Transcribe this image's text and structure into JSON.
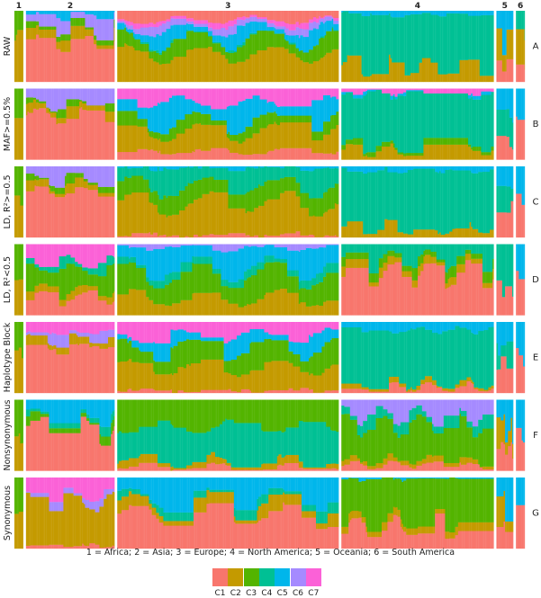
{
  "chart_data": {
    "type": "bar",
    "subtype": "stacked-proportion-admixture",
    "groups": [
      {
        "id": "1",
        "weight": 1.0
      },
      {
        "id": "2",
        "weight": 10.0
      },
      {
        "id": "3",
        "weight": 25.0
      },
      {
        "id": "4",
        "weight": 17.2
      },
      {
        "id": "5",
        "weight": 1.9
      },
      {
        "id": "6",
        "weight": 1.0
      }
    ],
    "clusters": [
      {
        "name": "C1",
        "color": "#F8766D"
      },
      {
        "name": "C2",
        "color": "#C49A00"
      },
      {
        "name": "C3",
        "color": "#53B400"
      },
      {
        "name": "C4",
        "color": "#00C094"
      },
      {
        "name": "C5",
        "color": "#00B6EB"
      },
      {
        "name": "C6",
        "color": "#A58AFF"
      },
      {
        "name": "C7",
        "color": "#FB61D7"
      }
    ],
    "panels": [
      {
        "label": "RAW",
        "letter": "A",
        "groups": [
          [
            [
              1,
              0.6
            ],
            [
              2,
              0.4
            ]
          ],
          [
            [
              0,
              0.58
            ],
            [
              1,
              0.12
            ],
            [
              2,
              0.06
            ],
            [
              5,
              0.18
            ],
            [
              4,
              0.06
            ]
          ],
          [
            [
              1,
              0.41
            ],
            [
              2,
              0.2
            ],
            [
              3,
              0.01
            ],
            [
              4,
              0.13
            ],
            [
              5,
              0.07
            ],
            [
              6,
              0.05
            ],
            [
              0,
              0.13
            ]
          ],
          [
            [
              1,
              0.19
            ],
            [
              3,
              0.76
            ],
            [
              4,
              0.05
            ]
          ],
          [
            [
              0,
              0.3
            ],
            [
              1,
              0.3
            ],
            [
              4,
              0.4
            ]
          ],
          [
            [
              0,
              0.3
            ],
            [
              1,
              0.4
            ],
            [
              3,
              0.3
            ]
          ]
        ]
      },
      {
        "label": "MAF>=0.5%",
        "letter": "B",
        "groups": [
          [
            [
              1,
              0.6
            ],
            [
              2,
              0.4
            ]
          ],
          [
            [
              0,
              0.65
            ],
            [
              1,
              0.1
            ],
            [
              2,
              0.05
            ],
            [
              5,
              0.2
            ]
          ],
          [
            [
              0,
              0.12
            ],
            [
              1,
              0.28
            ],
            [
              2,
              0.13
            ],
            [
              4,
              0.27
            ],
            [
              6,
              0.2
            ]
          ],
          [
            [
              1,
              0.12
            ],
            [
              2,
              0.06
            ],
            [
              3,
              0.74
            ],
            [
              4,
              0.03
            ],
            [
              6,
              0.05
            ]
          ],
          [
            [
              0,
              0.3
            ],
            [
              3,
              0.3
            ],
            [
              4,
              0.4
            ]
          ],
          [
            [
              0,
              0.5
            ],
            [
              4,
              0.5
            ]
          ]
        ]
      },
      {
        "label": "LD, R²>=0.5",
        "letter": "C",
        "groups": [
          [
            [
              1,
              0.6
            ],
            [
              2,
              0.4
            ]
          ],
          [
            [
              0,
              0.65
            ],
            [
              1,
              0.1
            ],
            [
              2,
              0.07
            ],
            [
              5,
              0.18
            ]
          ],
          [
            [
              0,
              0.03
            ],
            [
              1,
              0.45
            ],
            [
              2,
              0.25
            ],
            [
              3,
              0.25
            ],
            [
              4,
              0.02
            ]
          ],
          [
            [
              1,
              0.12
            ],
            [
              3,
              0.82
            ],
            [
              4,
              0.06
            ]
          ],
          [
            [
              0,
              0.3
            ],
            [
              3,
              0.3
            ],
            [
              4,
              0.4
            ]
          ],
          [
            [
              0,
              0.5
            ],
            [
              4,
              0.5
            ]
          ]
        ]
      },
      {
        "label": "LD, R²<0.5",
        "letter": "D",
        "groups": [
          [
            [
              1,
              0.5
            ],
            [
              2,
              0.5
            ]
          ],
          [
            [
              0,
              0.25
            ],
            [
              1,
              0.1
            ],
            [
              2,
              0.3
            ],
            [
              3,
              0.1
            ],
            [
              6,
              0.25
            ]
          ],
          [
            [
              1,
              0.24
            ],
            [
              2,
              0.33
            ],
            [
              3,
              0.1
            ],
            [
              4,
              0.28
            ],
            [
              5,
              0.05
            ]
          ],
          [
            [
              0,
              0.6
            ],
            [
              1,
              0.1
            ],
            [
              2,
              0.1
            ],
            [
              3,
              0.2
            ]
          ],
          [
            [
              0,
              0.5
            ],
            [
              3,
              0.5
            ]
          ],
          [
            [
              0,
              0.5
            ],
            [
              4,
              0.5
            ]
          ]
        ]
      },
      {
        "label": "Haplotype Block",
        "letter": "E",
        "groups": [
          [
            [
              1,
              0.6
            ],
            [
              2,
              0.4
            ]
          ],
          [
            [
              0,
              0.65
            ],
            [
              1,
              0.1
            ],
            [
              5,
              0.1
            ],
            [
              6,
              0.15
            ]
          ],
          [
            [
              0,
              0.04
            ],
            [
              1,
              0.33
            ],
            [
              2,
              0.27
            ],
            [
              4,
              0.16
            ],
            [
              6,
              0.2
            ]
          ],
          [
            [
              0,
              0.07
            ],
            [
              1,
              0.05
            ],
            [
              3,
              0.77
            ],
            [
              4,
              0.11
            ]
          ],
          [
            [
              0,
              0.3
            ],
            [
              3,
              0.3
            ],
            [
              4,
              0.4
            ]
          ],
          [
            [
              0,
              0.5
            ],
            [
              4,
              0.5
            ]
          ]
        ]
      },
      {
        "label": "Nonsynonymous",
        "letter": "F",
        "groups": [
          [
            [
              1,
              0.5
            ],
            [
              2,
              0.5
            ]
          ],
          [
            [
              0,
              0.6
            ],
            [
              2,
              0.1
            ],
            [
              3,
              0.08
            ],
            [
              4,
              0.22
            ]
          ],
          [
            [
              0,
              0.04
            ],
            [
              1,
              0.07
            ],
            [
              3,
              0.5
            ],
            [
              2,
              0.39
            ]
          ],
          [
            [
              0,
              0.08
            ],
            [
              1,
              0.06
            ],
            [
              2,
              0.52
            ],
            [
              3,
              0.14
            ],
            [
              5,
              0.2
            ]
          ],
          [
            [
              0,
              0.3
            ],
            [
              1,
              0.3
            ],
            [
              4,
              0.4
            ]
          ],
          [
            [
              0,
              0.5
            ],
            [
              4,
              0.5
            ]
          ]
        ]
      },
      {
        "label": "Synonymous",
        "letter": "G",
        "groups": [
          [
            [
              1,
              0.5
            ],
            [
              2,
              0.5
            ]
          ],
          [
            [
              0,
              0.05
            ],
            [
              1,
              0.62
            ],
            [
              5,
              0.08
            ],
            [
              6,
              0.25
            ]
          ],
          [
            [
              0,
              0.47
            ],
            [
              1,
              0.14
            ],
            [
              3,
              0.1
            ],
            [
              4,
              0.29
            ]
          ],
          [
            [
              0,
              0.28
            ],
            [
              1,
              0.1
            ],
            [
              2,
              0.6
            ],
            [
              4,
              0.02
            ]
          ],
          [
            [
              0,
              0.3
            ],
            [
              1,
              0.3
            ],
            [
              4,
              0.4
            ]
          ],
          [
            [
              0,
              0.5
            ],
            [
              4,
              0.5
            ]
          ]
        ]
      }
    ]
  },
  "caption": "1 = Africa; 2 = Asia; 3 = Europe; 4 = North America; 5 = Oceania; 6 = South America"
}
